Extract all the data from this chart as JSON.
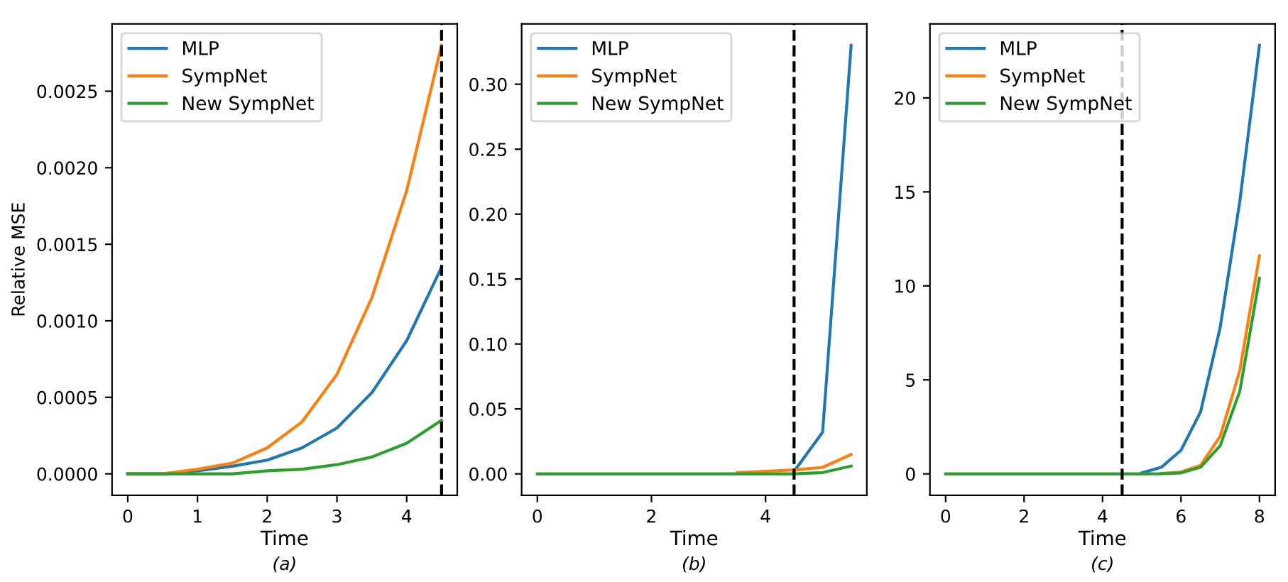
{
  "chart_data": [
    {
      "type": "line",
      "ylabel": "Relative MSE",
      "xlabel": "Time",
      "annotations": [
        "(a)"
      ],
      "legend": "top left",
      "grid": false,
      "x": [
        0,
        0.5,
        1,
        1.5,
        2,
        2.5,
        3,
        3.5,
        4,
        4.5
      ],
      "xlim": [
        -0.225,
        4.725
      ],
      "xticks": [
        0,
        1,
        2,
        3,
        4
      ],
      "ylim": [
        -0.00014,
        0.00294
      ],
      "yticks": [
        {
          "value": 0,
          "label": "0.0000"
        },
        {
          "value": 0.0005,
          "label": "0.0005"
        },
        {
          "value": 0.001,
          "label": "0.0010"
        },
        {
          "value": 0.0015,
          "label": "0.0015"
        },
        {
          "value": 0.002,
          "label": "0.0020"
        },
        {
          "value": 0.0025,
          "label": "0.0025"
        }
      ],
      "ref_lines": [
        {
          "axis": "x",
          "value": 4.5,
          "color": "#000000",
          "line_style": "dashed"
        }
      ],
      "series": [
        {
          "name": "MLP",
          "color": "#1f77b4",
          "values": [
            0,
            0,
            2e-05,
            5e-05,
            9e-05,
            0.00017,
            0.0003,
            0.00053,
            0.00087,
            0.00135
          ]
        },
        {
          "name": "SympNet",
          "color": "#ff7f0e",
          "values": [
            0,
            0,
            3e-05,
            7e-05,
            0.00017,
            0.00034,
            0.00065,
            0.00115,
            0.00185,
            0.0028
          ]
        },
        {
          "name": "New SympNet",
          "color": "#2ca02c",
          "values": [
            0,
            0,
            0,
            0,
            2e-05,
            3e-05,
            6e-05,
            0.00011,
            0.0002,
            0.00035
          ]
        }
      ]
    },
    {
      "type": "line",
      "xlabel": "Time",
      "annotations": [
        "(b)"
      ],
      "legend": "top left",
      "grid": false,
      "x": [
        0,
        0.5,
        1,
        1.5,
        2,
        2.5,
        3,
        3.5,
        4,
        4.5,
        5,
        5.5
      ],
      "xlim": [
        -0.275,
        5.775
      ],
      "xticks": [
        0,
        2,
        4
      ],
      "ylim": [
        -0.0165,
        0.3465
      ],
      "yticks": [
        {
          "value": 0,
          "label": "0.00"
        },
        {
          "value": 0.05,
          "label": "0.05"
        },
        {
          "value": 0.1,
          "label": "0.10"
        },
        {
          "value": 0.15,
          "label": "0.15"
        },
        {
          "value": 0.2,
          "label": "0.20"
        },
        {
          "value": 0.25,
          "label": "0.25"
        },
        {
          "value": 0.3,
          "label": "0.30"
        }
      ],
      "ref_lines": [
        {
          "axis": "x",
          "value": 4.5,
          "color": "#000000",
          "line_style": "dashed"
        }
      ],
      "series": [
        {
          "name": "MLP",
          "color": "#1f77b4",
          "values": [
            null,
            null,
            null,
            null,
            null,
            null,
            null,
            null,
            null,
            0.002,
            0.032,
            0.33
          ]
        },
        {
          "name": "SympNet",
          "color": "#ff7f0e",
          "values": [
            null,
            null,
            null,
            null,
            null,
            null,
            null,
            0.001,
            0.002,
            0.003,
            0.005,
            0.015
          ]
        },
        {
          "name": "New SympNet",
          "color": "#2ca02c",
          "values": [
            0,
            0,
            0,
            0,
            0,
            0,
            0,
            0,
            0,
            0,
            0.001,
            0.006
          ]
        }
      ]
    },
    {
      "type": "line",
      "xlabel": "Time",
      "annotations": [
        "(c)"
      ],
      "legend": "top left",
      "grid": false,
      "x": [
        0,
        0.5,
        1,
        1.5,
        2,
        2.5,
        3,
        3.5,
        4,
        4.5,
        5,
        5.5,
        6,
        6.5,
        7,
        7.5,
        8
      ],
      "xlim": [
        -0.4,
        8.4
      ],
      "xticks": [
        0,
        2,
        4,
        6,
        8
      ],
      "ylim": [
        -1.14,
        23.94
      ],
      "yticks": [
        0,
        5,
        10,
        15,
        20
      ],
      "ref_lines": [
        {
          "axis": "x",
          "value": 4.5,
          "color": "#000000",
          "line_style": "dashed"
        }
      ],
      "series": [
        {
          "name": "MLP",
          "color": "#1f77b4",
          "values": [
            null,
            null,
            null,
            null,
            null,
            null,
            null,
            null,
            null,
            null,
            0.05,
            0.35,
            1.25,
            3.3,
            7.8,
            14.5,
            22.8
          ]
        },
        {
          "name": "SympNet",
          "color": "#ff7f0e",
          "values": [
            null,
            null,
            null,
            null,
            null,
            null,
            null,
            null,
            null,
            null,
            null,
            0.02,
            0.1,
            0.45,
            2.0,
            5.5,
            11.6
          ]
        },
        {
          "name": "New SympNet",
          "color": "#2ca02c",
          "values": [
            0,
            0,
            0,
            0,
            0,
            0,
            0,
            0,
            0,
            0,
            0,
            0.01,
            0.05,
            0.35,
            1.5,
            4.4,
            10.4
          ]
        }
      ]
    }
  ]
}
